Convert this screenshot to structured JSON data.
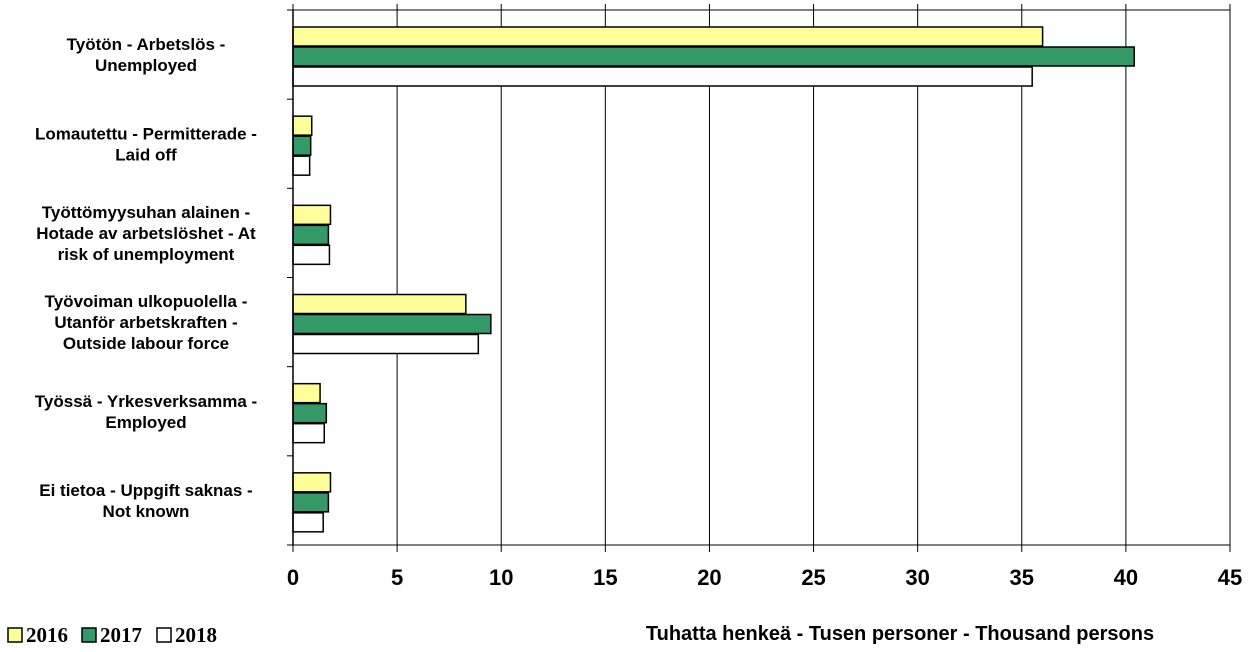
{
  "chart_data": {
    "type": "bar",
    "orientation": "horizontal",
    "categories": [
      [
        "Työtön - Arbetslös  -",
        "Unemployed"
      ],
      [
        "Lomautettu - Permitterade -",
        "Laid off"
      ],
      [
        "Työttömyysuhan alainen -",
        "Hotade av arbetslöshet - At",
        "risk of unemployment"
      ],
      [
        "Työvoiman ulkopuolella -",
        "Utanför arbetskraften -",
        "Outside labour force"
      ],
      [
        "Työssä - Yrkesverksamma -",
        "Employed"
      ],
      [
        "Ei tietoa - Uppgift saknas -",
        "Not known"
      ]
    ],
    "series": [
      {
        "name": "2016",
        "color": "#ffff99",
        "values": [
          36.0,
          0.9,
          1.8,
          8.3,
          1.3,
          1.8
        ]
      },
      {
        "name": "2017",
        "color": "#339966",
        "values": [
          40.4,
          0.85,
          1.7,
          9.5,
          1.6,
          1.7
        ]
      },
      {
        "name": "2018",
        "color": "#ffffff",
        "values": [
          35.5,
          0.8,
          1.75,
          8.9,
          1.5,
          1.45
        ]
      }
    ],
    "xlim": [
      0,
      45
    ],
    "xticks": [
      0,
      5,
      10,
      15,
      20,
      25,
      30,
      35,
      40,
      45
    ],
    "xlabel": "Tuhatta henkeä -  Tusen personer - Thousand persons",
    "grid": "vertical",
    "legend_position": "bottom-left"
  }
}
